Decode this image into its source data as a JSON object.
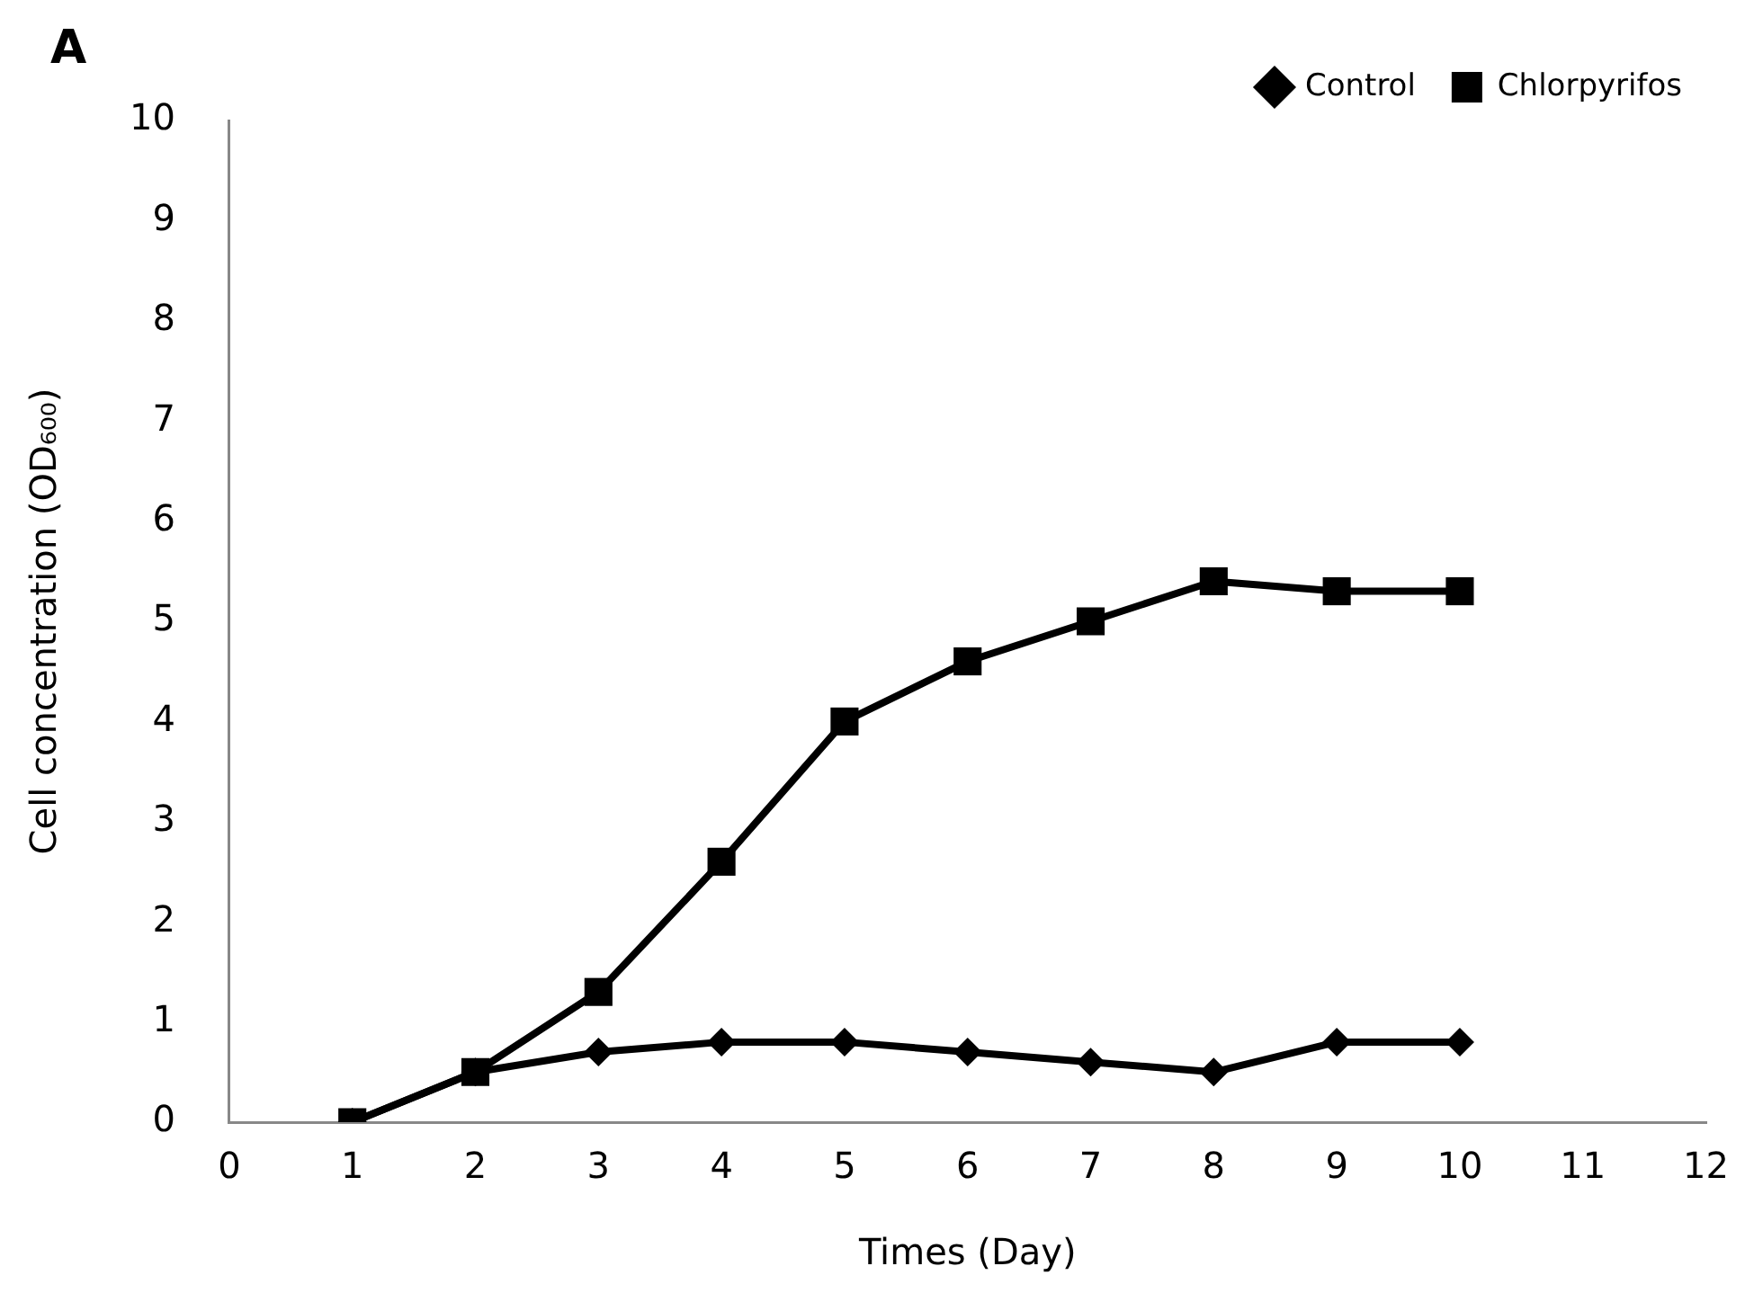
{
  "chart_data": {
    "type": "line",
    "xlabel": "Times (Day)",
    "ylabel": "Cell concentration (OD₆₀₀)",
    "annotations": [
      "A"
    ],
    "x": [
      1,
      2,
      3,
      4,
      5,
      6,
      7,
      8,
      9,
      10
    ],
    "series": [
      {
        "name": "Control",
        "color": "#000000",
        "marker": "diamond",
        "values": [
          0,
          0.5,
          0.7,
          0.8,
          0.8,
          0.7,
          0.6,
          0.5,
          0.8,
          0.8
        ]
      },
      {
        "name": "Chlorpyrifos",
        "color": "#000000",
        "marker": "square",
        "values": [
          0,
          0.5,
          1.3,
          2.6,
          4.0,
          4.6,
          5.0,
          5.4,
          5.3,
          5.3
        ]
      }
    ],
    "xlim": [
      0,
      12
    ],
    "xticks": [
      0,
      1,
      2,
      3,
      4,
      5,
      6,
      7,
      8,
      9,
      10,
      11,
      12
    ],
    "ylim": [
      0,
      10
    ],
    "yticks": [
      0,
      1,
      2,
      3,
      4,
      5,
      6,
      7,
      8,
      9,
      10
    ],
    "grid": false,
    "legend": "top right",
    "line_style": "solid"
  }
}
